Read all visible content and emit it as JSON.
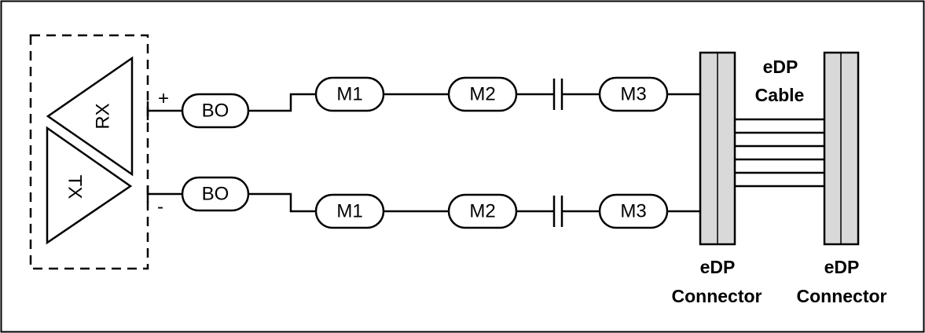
{
  "transceiver": {
    "rx_label": "RX",
    "tx_label": "TX",
    "plus_sign": "+",
    "minus_sign": "-"
  },
  "lanes": [
    {
      "bo": "BO",
      "m1": "M1",
      "m2": "M2",
      "m3": "M3"
    },
    {
      "bo": "BO",
      "m1": "M1",
      "m2": "M2",
      "m3": "M3"
    }
  ],
  "cable": {
    "line1": "eDP",
    "line2": "Cable"
  },
  "connectors": [
    {
      "line1": "eDP",
      "line2": "Connector"
    },
    {
      "line1": "eDP",
      "line2": "Connector"
    }
  ],
  "colors": {
    "connector_fill": "#d9d9d9",
    "stroke": "#000000"
  }
}
